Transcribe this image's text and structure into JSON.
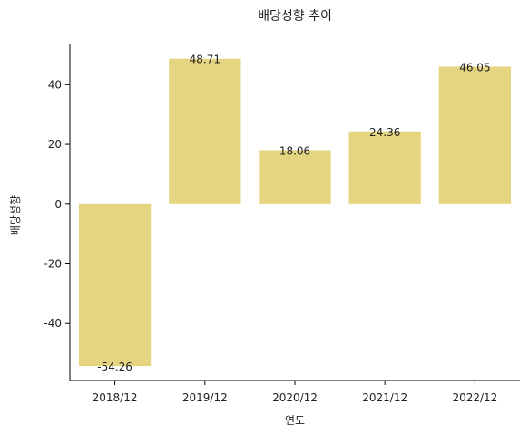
{
  "chart_data": {
    "type": "bar",
    "title": "배당성향 추이",
    "xlabel": "연도",
    "ylabel": "배당성향",
    "categories": [
      "2018/12",
      "2019/12",
      "2020/12",
      "2021/12",
      "2022/12"
    ],
    "values": [
      -54.26,
      48.71,
      18.06,
      24.36,
      46.05
    ],
    "value_labels": [
      "-54.26",
      "48.71",
      "18.06",
      "24.36",
      "46.05"
    ],
    "ylim": [
      -59.1,
      53.5
    ],
    "yticks": [
      -40,
      -20,
      0,
      20,
      40
    ],
    "ytick_labels": [
      "-40",
      "-20",
      "0",
      "20",
      "40"
    ],
    "bar_color": "#e5d581",
    "grid": false,
    "legend": "none"
  }
}
